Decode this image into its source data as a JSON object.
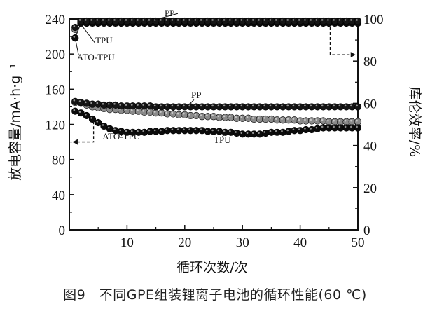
{
  "caption": "图9　不同GPE组装锂离子电池的循环性能(60 ℃)",
  "chart_data": {
    "type": "scatter",
    "xlabel": "循环次数/次",
    "ylabel_left": "放电容量/mA·h·g⁻¹",
    "ylabel_right": "库伦效率/%",
    "xlim": [
      0,
      50
    ],
    "ylim_left": [
      0,
      240
    ],
    "ylim_right": [
      0,
      100
    ],
    "xticks": [
      10,
      20,
      30,
      40,
      50
    ],
    "yticks_left": [
      0,
      40,
      80,
      120,
      160,
      200,
      240
    ],
    "yticks_right": [
      0,
      20,
      40,
      60,
      80,
      100
    ],
    "grid": false,
    "series": [
      {
        "name": "PP",
        "axis": "left",
        "color": "#1a1a1a",
        "marker_fill": "#151515",
        "x": [
          1,
          2,
          3,
          4,
          5,
          6,
          7,
          8,
          9,
          10,
          11,
          12,
          13,
          14,
          15,
          16,
          17,
          18,
          19,
          20,
          21,
          22,
          23,
          24,
          25,
          26,
          27,
          28,
          29,
          30,
          31,
          32,
          33,
          34,
          35,
          36,
          37,
          38,
          39,
          40,
          41,
          42,
          43,
          44,
          45,
          46,
          47,
          48,
          49,
          50
        ],
        "y": [
          146,
          145,
          144,
          143,
          143,
          142,
          142,
          142,
          141,
          141,
          141,
          141,
          141,
          141,
          140,
          140,
          140,
          140,
          140,
          140,
          140,
          140,
          140,
          140,
          140,
          140,
          140,
          140,
          140,
          140,
          140,
          140,
          140,
          140,
          140,
          140,
          140,
          140,
          140,
          140,
          140,
          140,
          140,
          140,
          140,
          140,
          140,
          140,
          140,
          140
        ]
      },
      {
        "name": "TPU",
        "axis": "left",
        "color": "#7a7a7a",
        "marker_fill": "#8a8a8a",
        "x": [
          1,
          2,
          3,
          4,
          5,
          6,
          7,
          8,
          9,
          10,
          11,
          12,
          13,
          14,
          15,
          16,
          17,
          18,
          19,
          20,
          21,
          22,
          23,
          24,
          25,
          26,
          27,
          28,
          29,
          30,
          31,
          32,
          33,
          34,
          35,
          36,
          37,
          38,
          39,
          40,
          41,
          42,
          43,
          44,
          45,
          46,
          47,
          48,
          49,
          50
        ],
        "y": [
          145,
          144,
          142,
          140,
          139,
          138,
          137,
          137,
          136,
          136,
          135,
          135,
          134,
          134,
          133,
          133,
          132,
          132,
          131,
          131,
          130,
          130,
          129,
          129,
          129,
          128,
          128,
          128,
          127,
          127,
          127,
          126,
          126,
          126,
          126,
          125,
          125,
          125,
          125,
          124,
          124,
          124,
          124,
          124,
          123,
          123,
          123,
          123,
          123,
          123
        ]
      },
      {
        "name": "ATO-TPU",
        "axis": "left",
        "color": "#111111",
        "marker_fill": "#0c0c0c",
        "x": [
          1,
          2,
          3,
          4,
          5,
          6,
          7,
          8,
          9,
          10,
          11,
          12,
          13,
          14,
          15,
          16,
          17,
          18,
          19,
          20,
          21,
          22,
          23,
          24,
          25,
          26,
          27,
          28,
          29,
          30,
          31,
          32,
          33,
          34,
          35,
          36,
          37,
          38,
          39,
          40,
          41,
          42,
          43,
          44,
          45,
          46,
          47,
          48,
          49,
          50
        ],
        "y": [
          135,
          133,
          130,
          126,
          122,
          118,
          115,
          113,
          112,
          111,
          111,
          111,
          111,
          112,
          112,
          112,
          113,
          113,
          113,
          113,
          113,
          113,
          113,
          112,
          112,
          112,
          111,
          111,
          110,
          109,
          109,
          109,
          109,
          110,
          111,
          111,
          111,
          112,
          113,
          113,
          114,
          114,
          115,
          116,
          116,
          116,
          116,
          116,
          116,
          116
        ]
      },
      {
        "name": "PP",
        "axis": "right",
        "color": "#1a1a1a",
        "marker_fill": "#151515",
        "x": [
          1,
          2,
          3,
          4,
          5,
          6,
          7,
          8,
          9,
          10,
          11,
          12,
          13,
          14,
          15,
          16,
          17,
          18,
          19,
          20,
          21,
          22,
          23,
          24,
          25,
          26,
          27,
          28,
          29,
          30,
          31,
          32,
          33,
          34,
          35,
          36,
          37,
          38,
          39,
          40,
          41,
          42,
          43,
          44,
          45,
          46,
          47,
          48,
          49,
          50
        ],
        "y": [
          96,
          99,
          99,
          99,
          99,
          99,
          99,
          99,
          99,
          99,
          99,
          99,
          99,
          99,
          99,
          99,
          99,
          99,
          99,
          99,
          99,
          99,
          99,
          99,
          99,
          99,
          99,
          99,
          99,
          99,
          99,
          99,
          99,
          99,
          99,
          99,
          99,
          99,
          99,
          99,
          99,
          99,
          99,
          99,
          99,
          99,
          99,
          99,
          99,
          99
        ]
      },
      {
        "name": "TPU",
        "axis": "right",
        "color": "#7a7a7a",
        "marker_fill": "#8a8a8a",
        "x": [
          1,
          2,
          3,
          4,
          5,
          6,
          7,
          8,
          9,
          10,
          11,
          12,
          13,
          14,
          15,
          16,
          17,
          18,
          19,
          20,
          21,
          22,
          23,
          24,
          25,
          26,
          27,
          28,
          29,
          30,
          31,
          32,
          33,
          34,
          35,
          36,
          37,
          38,
          39,
          40,
          41,
          42,
          43,
          44,
          45,
          46,
          47,
          48,
          49,
          50
        ],
        "y": [
          95,
          98.5,
          98.5,
          98.5,
          98.5,
          98.5,
          98.5,
          98.5,
          98.5,
          98.5,
          98.5,
          98.5,
          98.5,
          98.5,
          98.5,
          98.5,
          98.5,
          98.5,
          98.5,
          98.5,
          98.5,
          98.5,
          98.5,
          98.5,
          98.5,
          98.5,
          98.5,
          98.5,
          98.5,
          98.5,
          98.5,
          98.5,
          98.5,
          98.5,
          98.5,
          98.5,
          98.5,
          98.5,
          98.5,
          98.5,
          98.5,
          98.5,
          98.5,
          98.5,
          98.5,
          98.5,
          98.5,
          98.5,
          98.5,
          98.5
        ]
      },
      {
        "name": "ATO-TPU",
        "axis": "right",
        "color": "#111111",
        "marker_fill": "#0c0c0c",
        "x": [
          1,
          2,
          3,
          4,
          5,
          6,
          7,
          8,
          9,
          10,
          11,
          12,
          13,
          14,
          15,
          16,
          17,
          18,
          19,
          20,
          21,
          22,
          23,
          24,
          25,
          26,
          27,
          28,
          29,
          30,
          31,
          32,
          33,
          34,
          35,
          36,
          37,
          38,
          39,
          40,
          41,
          42,
          43,
          44,
          45,
          46,
          47,
          48,
          49,
          50
        ],
        "y": [
          91,
          98,
          98,
          98,
          98,
          98,
          98,
          98,
          98,
          98,
          98,
          98,
          98,
          98,
          98,
          98,
          98,
          98,
          98,
          98,
          98,
          98,
          98,
          98,
          98,
          98,
          98,
          98,
          98,
          98,
          98,
          98,
          98,
          98,
          98,
          98,
          98,
          98,
          98,
          98,
          98,
          98,
          98,
          98,
          98,
          98,
          98,
          98,
          98,
          98
        ]
      }
    ],
    "annotations": [
      {
        "text": "PP",
        "x": 16.5,
        "y": 243,
        "anchor": "start"
      },
      {
        "text": "TPU",
        "x": 4.5,
        "y": 212,
        "anchor": "start"
      },
      {
        "text": "ATO-TPU",
        "x": 1.3,
        "y": 193,
        "anchor": "start"
      },
      {
        "text": "PP",
        "x": 22,
        "y": 150,
        "anchor": "middle"
      },
      {
        "text": "TPU",
        "x": 26.5,
        "y": 99,
        "anchor": "middle"
      },
      {
        "text": "ATO-TPU",
        "x": 9,
        "y": 103,
        "anchor": "middle"
      }
    ]
  }
}
